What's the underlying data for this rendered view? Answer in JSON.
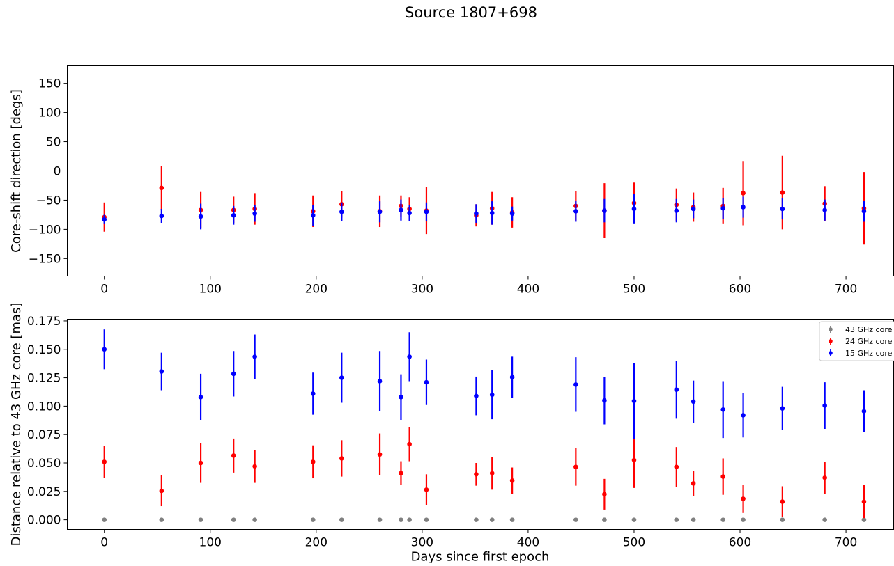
{
  "title": "Source 1807+698",
  "chart_data": [
    {
      "type": "scatter",
      "xlabel": "",
      "ylabel": "Core-shift direction [degs]",
      "xlim": [
        -35,
        745
      ],
      "ylim": [
        -180,
        180
      ],
      "xticks": [
        0,
        100,
        200,
        300,
        400,
        500,
        600,
        700
      ],
      "yticks": [
        150,
        100,
        50,
        0,
        -50,
        -100,
        -150
      ],
      "ytick_labels": [
        "150",
        "100",
        "50",
        "0",
        "−50",
        "−100",
        "−150"
      ],
      "series": [
        {
          "color": "#ff0000",
          "x": [
            0,
            54,
            91,
            122,
            142,
            197,
            224,
            260,
            280,
            288,
            304,
            351,
            366,
            385,
            445,
            472,
            500,
            540,
            556,
            584,
            603,
            640,
            680,
            717
          ],
          "y": [
            -79,
            -29,
            -67,
            -67,
            -65,
            -69,
            -57,
            -69,
            -60,
            -65,
            -68,
            -76,
            -64,
            -71,
            -60,
            -68,
            -55,
            -58,
            -62,
            -60,
            -38,
            -37,
            -56,
            -64
          ],
          "err": [
            25,
            38,
            31,
            23,
            27,
            27,
            23,
            27,
            18,
            20,
            40,
            19,
            28,
            26,
            25,
            47,
            35,
            28,
            25,
            31,
            55,
            63,
            30,
            62
          ]
        },
        {
          "color": "#0000ff",
          "x": [
            0,
            54,
            91,
            122,
            142,
            197,
            224,
            260,
            280,
            288,
            304,
            351,
            366,
            385,
            445,
            472,
            500,
            540,
            556,
            584,
            603,
            640,
            680,
            717
          ],
          "y": [
            -83,
            -77,
            -78,
            -76,
            -73,
            -76,
            -70,
            -70,
            -67,
            -72,
            -70,
            -73,
            -72,
            -73,
            -69,
            -68,
            -65,
            -68,
            -65,
            -64,
            -62,
            -65,
            -67,
            -69
          ],
          "err": [
            8,
            12,
            22,
            16,
            14,
            18,
            16,
            18,
            18,
            14,
            16,
            16,
            20,
            12,
            18,
            20,
            26,
            20,
            16,
            18,
            18,
            18,
            18,
            18
          ]
        }
      ]
    },
    {
      "type": "scatter",
      "xlabel": "Days since first epoch",
      "ylabel": "Distance relative to 43 GHz core [mas]",
      "xlim": [
        -35,
        745
      ],
      "ylim": [
        -0.0085,
        0.1765
      ],
      "xticks": [
        0,
        100,
        200,
        300,
        400,
        500,
        600,
        700
      ],
      "yticks": [
        0.0,
        0.025,
        0.05,
        0.075,
        0.1,
        0.125,
        0.15,
        0.175
      ],
      "ytick_labels": [
        "0.000",
        "0.025",
        "0.050",
        "0.075",
        "0.100",
        "0.125",
        "0.150",
        "0.175"
      ],
      "legend": {
        "placement": "top-right",
        "entries": [
          {
            "name": "43 GHz core",
            "color": "#808080"
          },
          {
            "name": "24 GHz core",
            "color": "#ff0000"
          },
          {
            "name": "15 GHz core",
            "color": "#0000ff"
          }
        ]
      },
      "series": [
        {
          "name": "43 GHz core",
          "color": "#808080",
          "x": [
            0,
            54,
            91,
            122,
            142,
            197,
            224,
            260,
            280,
            288,
            304,
            351,
            366,
            385,
            445,
            472,
            500,
            540,
            556,
            584,
            603,
            640,
            680,
            717
          ],
          "y": [
            0,
            0,
            0,
            0,
            0,
            0,
            0,
            0,
            0,
            0,
            0,
            0,
            0,
            0,
            0,
            0,
            0,
            0,
            0,
            0,
            0,
            0,
            0,
            0
          ],
          "err": [
            0,
            0,
            0,
            0,
            0,
            0,
            0,
            0,
            0,
            0,
            0,
            0,
            0,
            0,
            0,
            0,
            0,
            0,
            0,
            0,
            0,
            0,
            0,
            0
          ]
        },
        {
          "name": "24 GHz core",
          "color": "#ff0000",
          "x": [
            0,
            54,
            91,
            122,
            142,
            197,
            224,
            260,
            280,
            288,
            304,
            351,
            366,
            385,
            445,
            472,
            500,
            540,
            556,
            584,
            603,
            640,
            680,
            717
          ],
          "y": [
            0.051,
            0.0255,
            0.05,
            0.0565,
            0.047,
            0.051,
            0.054,
            0.0575,
            0.041,
            0.0665,
            0.0265,
            0.04,
            0.041,
            0.0345,
            0.0465,
            0.0225,
            0.0525,
            0.0465,
            0.032,
            0.038,
            0.0185,
            0.016,
            0.037,
            0.016
          ],
          "err": [
            0.014,
            0.0135,
            0.0175,
            0.015,
            0.0145,
            0.0145,
            0.016,
            0.0185,
            0.0105,
            0.015,
            0.0135,
            0.01,
            0.0145,
            0.0115,
            0.0165,
            0.0135,
            0.0245,
            0.0175,
            0.011,
            0.016,
            0.0125,
            0.0135,
            0.014,
            0.0145
          ]
        },
        {
          "name": "15 GHz core",
          "color": "#0000ff",
          "x": [
            0,
            54,
            91,
            122,
            142,
            197,
            224,
            260,
            280,
            288,
            304,
            351,
            366,
            385,
            445,
            472,
            500,
            540,
            556,
            584,
            603,
            640,
            680,
            717
          ],
          "y": [
            0.15,
            0.1305,
            0.108,
            0.1285,
            0.1435,
            0.111,
            0.125,
            0.122,
            0.108,
            0.1435,
            0.121,
            0.109,
            0.11,
            0.1255,
            0.119,
            0.105,
            0.1045,
            0.1145,
            0.104,
            0.097,
            0.092,
            0.098,
            0.1005,
            0.0955
          ],
          "err": [
            0.0175,
            0.0165,
            0.0205,
            0.02,
            0.0195,
            0.0185,
            0.022,
            0.0265,
            0.02,
            0.0215,
            0.02,
            0.017,
            0.0215,
            0.018,
            0.024,
            0.021,
            0.0335,
            0.0255,
            0.0185,
            0.025,
            0.0195,
            0.019,
            0.0205,
            0.0185
          ]
        }
      ]
    }
  ]
}
